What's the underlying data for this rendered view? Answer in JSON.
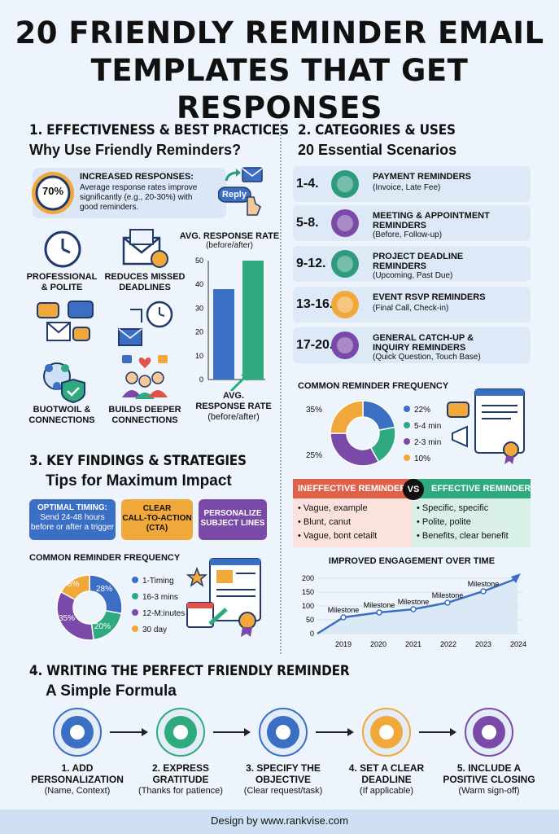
{
  "title_line1": "20 FRIENDLY REMINDER EMAIL",
  "title_line2": "TEMPLATES THAT GET RESPONSES",
  "s1": {
    "heading": "1. EFFECTIVENESS & BEST PRACTICES",
    "sub": "Why Use Friendly Reminders?",
    "badge": "70%",
    "resp_title": "INCREASED RESPONSES:",
    "resp_text1": "Average response rates improve",
    "resp_text2": "significantly (e.g., 20-30%) with",
    "resp_text3": "good reminders.",
    "reply": "Reply",
    "f1a": "PROFESSIONAL",
    "f1b": "& POLITE",
    "f2a": "REDUCES MISSED",
    "f2b": "DEADLINES",
    "f3a": "BUOTWOIL &",
    "f3b": "CONNECTIONS",
    "f4a": "BUILDS DEEPER",
    "f4b": "CONNECTIONS"
  },
  "chart_data": {
    "type": "bar",
    "title": "AVG. RESPONSE RATE",
    "subtitle": "(before/after)",
    "xlabel_line1": "AVG.",
    "xlabel_line2": "RESPONSE RATE",
    "xlabel_line3": "(before/after)",
    "categories": [
      "before",
      "after"
    ],
    "values": [
      38,
      50
    ],
    "ylim": [
      0,
      50
    ],
    "yticks": [
      "50",
      "40",
      "30",
      "20",
      "10",
      "0"
    ],
    "colors": [
      "#3a6fc4",
      "#2eaa7e"
    ]
  },
  "s2": {
    "heading": "2. CATEGORIES & USES",
    "sub": "20 Essential Scenarios",
    "items": [
      {
        "num": "1-4.",
        "t1": "PAYMENT REMINDERS",
        "t2": "",
        "sub": "(Invoice, Late Fee)",
        "color": "#2e9a7e"
      },
      {
        "num": "5-8.",
        "t1": "MEETING & APPOINTMENT",
        "t2": "REMINDERS",
        "sub": "(Before, Follow-up)",
        "color": "#7b4aa8"
      },
      {
        "num": "9-12.",
        "t1": "PROJECT DEADLINE",
        "t2": "REMINDERS",
        "sub": "(Upcoming, Past Due)",
        "color": "#2e9a7e"
      },
      {
        "num": "13-16.",
        "t1": "EVENT RSVP REMINDERS",
        "t2": "",
        "sub": "(Final Call, Check-in)",
        "color": "#f0a83a"
      },
      {
        "num": "17-20.",
        "t1": "GENERAL CATCH-UP &",
        "t2": "INQUIRY REMINDERS",
        "sub": "(Quick Question, Touch Base)",
        "color": "#7b4aa8"
      }
    ],
    "freq_title": "COMMON REMINDER FREQUENCY",
    "freq_left_top": "35%",
    "freq_left_bot": "25%",
    "freq_legend": [
      {
        "label": "22%",
        "color": "#3a6fc4"
      },
      {
        "label": "5-4 min",
        "color": "#2eaa7e"
      },
      {
        "label": "2-3 min",
        "color": "#7b4aa8"
      },
      {
        "label": "10%",
        "color": "#f0a83a"
      }
    ]
  },
  "compare": {
    "bad_title": "INEFFECTIVE REMINDER",
    "vs": "VS",
    "good_title": "EFFECTIVE REMINDER",
    "bad": [
      "Vague, example",
      "Blunt, canut",
      "Vague, bont cetailt"
    ],
    "good": [
      "Specific, specific",
      "Polite, polite",
      "Benefits, clear benefit"
    ]
  },
  "engagement": {
    "title": "IMPROVED ENGAGEMENT OVER TIME",
    "yticks": [
      "200",
      "150",
      "100",
      "50",
      "0"
    ],
    "years": [
      "2019",
      "2020",
      "2021",
      "2022",
      "2023",
      "2024"
    ],
    "milestone": "Milestone"
  },
  "s3": {
    "heading": "3. KEY FINDINGS & STRATEGIES",
    "sub": "Tips for Maximum Impact",
    "p1a": "OPTIMAL TIMING:",
    "p1b": "Send 24-48 hours",
    "p1c": "before or after a trigger",
    "p2a": "CLEAR",
    "p2b": "CALL-TO-ACTION",
    "p2c": "(CTA)",
    "p3a": "PERSONALIZE",
    "p3b": "SUBJECT LINES",
    "freq_title": "COMMON REMINDER FREQUENCY",
    "donut_labels": [
      "28%",
      "20%",
      "35%",
      "8%"
    ],
    "legend": [
      {
        "label": "1-Timing",
        "color": "#3a6fc4"
      },
      {
        "label": "16-3 mins",
        "color": "#2eaa7e"
      },
      {
        "label": "12-M:inutes",
        "color": "#7b4aa8"
      },
      {
        "label": "30 day",
        "color": "#f0a83a"
      }
    ]
  },
  "s4": {
    "heading": "4. WRITING THE PERFECT FRIENDLY REMINDER",
    "sub": "A Simple Formula",
    "steps": [
      {
        "a": "1. ADD",
        "b": "PERSONALIZATION",
        "c": "(Name, Context)",
        "color": "#3a6fc4"
      },
      {
        "a": "2. EXPRESS",
        "b": "GRATITUDE",
        "c": "(Thanks for patience)",
        "color": "#2eaa7e"
      },
      {
        "a": "3. SPECIFY THE",
        "b": "OBJECTIVE",
        "c": "(Clear request/task)",
        "color": "#3a6fc4"
      },
      {
        "a": "4. SET A CLEAR",
        "b": "DEADLINE",
        "c": "(If applicable)",
        "color": "#f0a83a"
      },
      {
        "a": "5. INCLUDE A",
        "b": "POSITIVE CLOSING",
        "c": "(Warm sign-off)",
        "color": "#7b4aa8"
      }
    ]
  },
  "footer": "Design by www.rankvise.com"
}
